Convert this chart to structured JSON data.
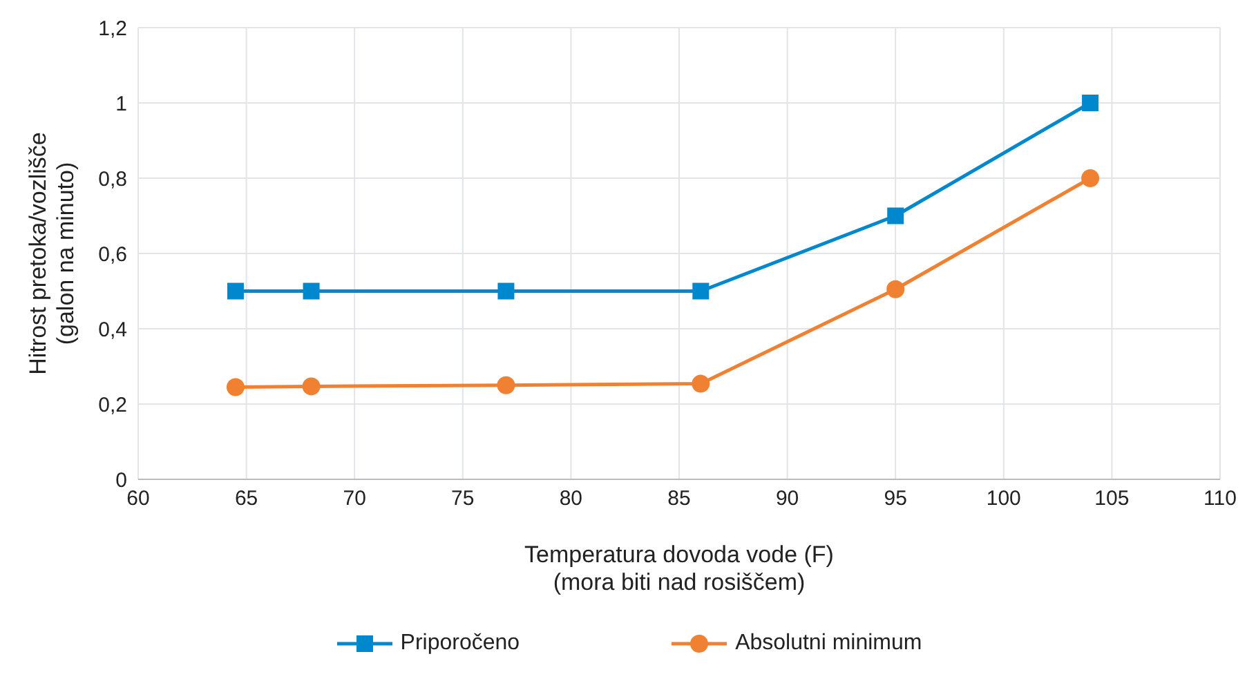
{
  "chart_data": {
    "type": "line",
    "xlabel": "Temperatura dovoda vode (F)\n(mora biti nad rosiščem)",
    "ylabel": "Hitrost pretoka/vozlišče\n(galon na minuto)",
    "x": [
      64.5,
      68,
      77,
      86,
      95,
      104
    ],
    "series": [
      {
        "name": "Priporočeno",
        "color": "#0088cf",
        "marker": "square",
        "values": [
          0.5,
          0.5,
          0.5,
          0.5,
          0.7,
          1.0
        ]
      },
      {
        "name": "Absolutni minimum",
        "color": "#f08132",
        "marker": "circle",
        "values": [
          0.245,
          0.247,
          0.25,
          0.254,
          0.505,
          0.8
        ]
      }
    ],
    "xlim": [
      60,
      110
    ],
    "xticks": [
      60,
      65,
      70,
      75,
      80,
      85,
      90,
      95,
      100,
      105,
      110
    ],
    "ylim": [
      0,
      1.2
    ],
    "yticks": [
      0,
      {
        "value": 0.2,
        "label": "0,2"
      },
      {
        "value": 0.4,
        "label": "0,4"
      },
      {
        "value": 0.6,
        "label": "0,6"
      },
      {
        "value": 0.8,
        "label": "0,8"
      },
      1,
      {
        "value": 1.2,
        "label": "1,2"
      }
    ],
    "grid": true,
    "legend": "bottom",
    "line_style": "solid"
  }
}
